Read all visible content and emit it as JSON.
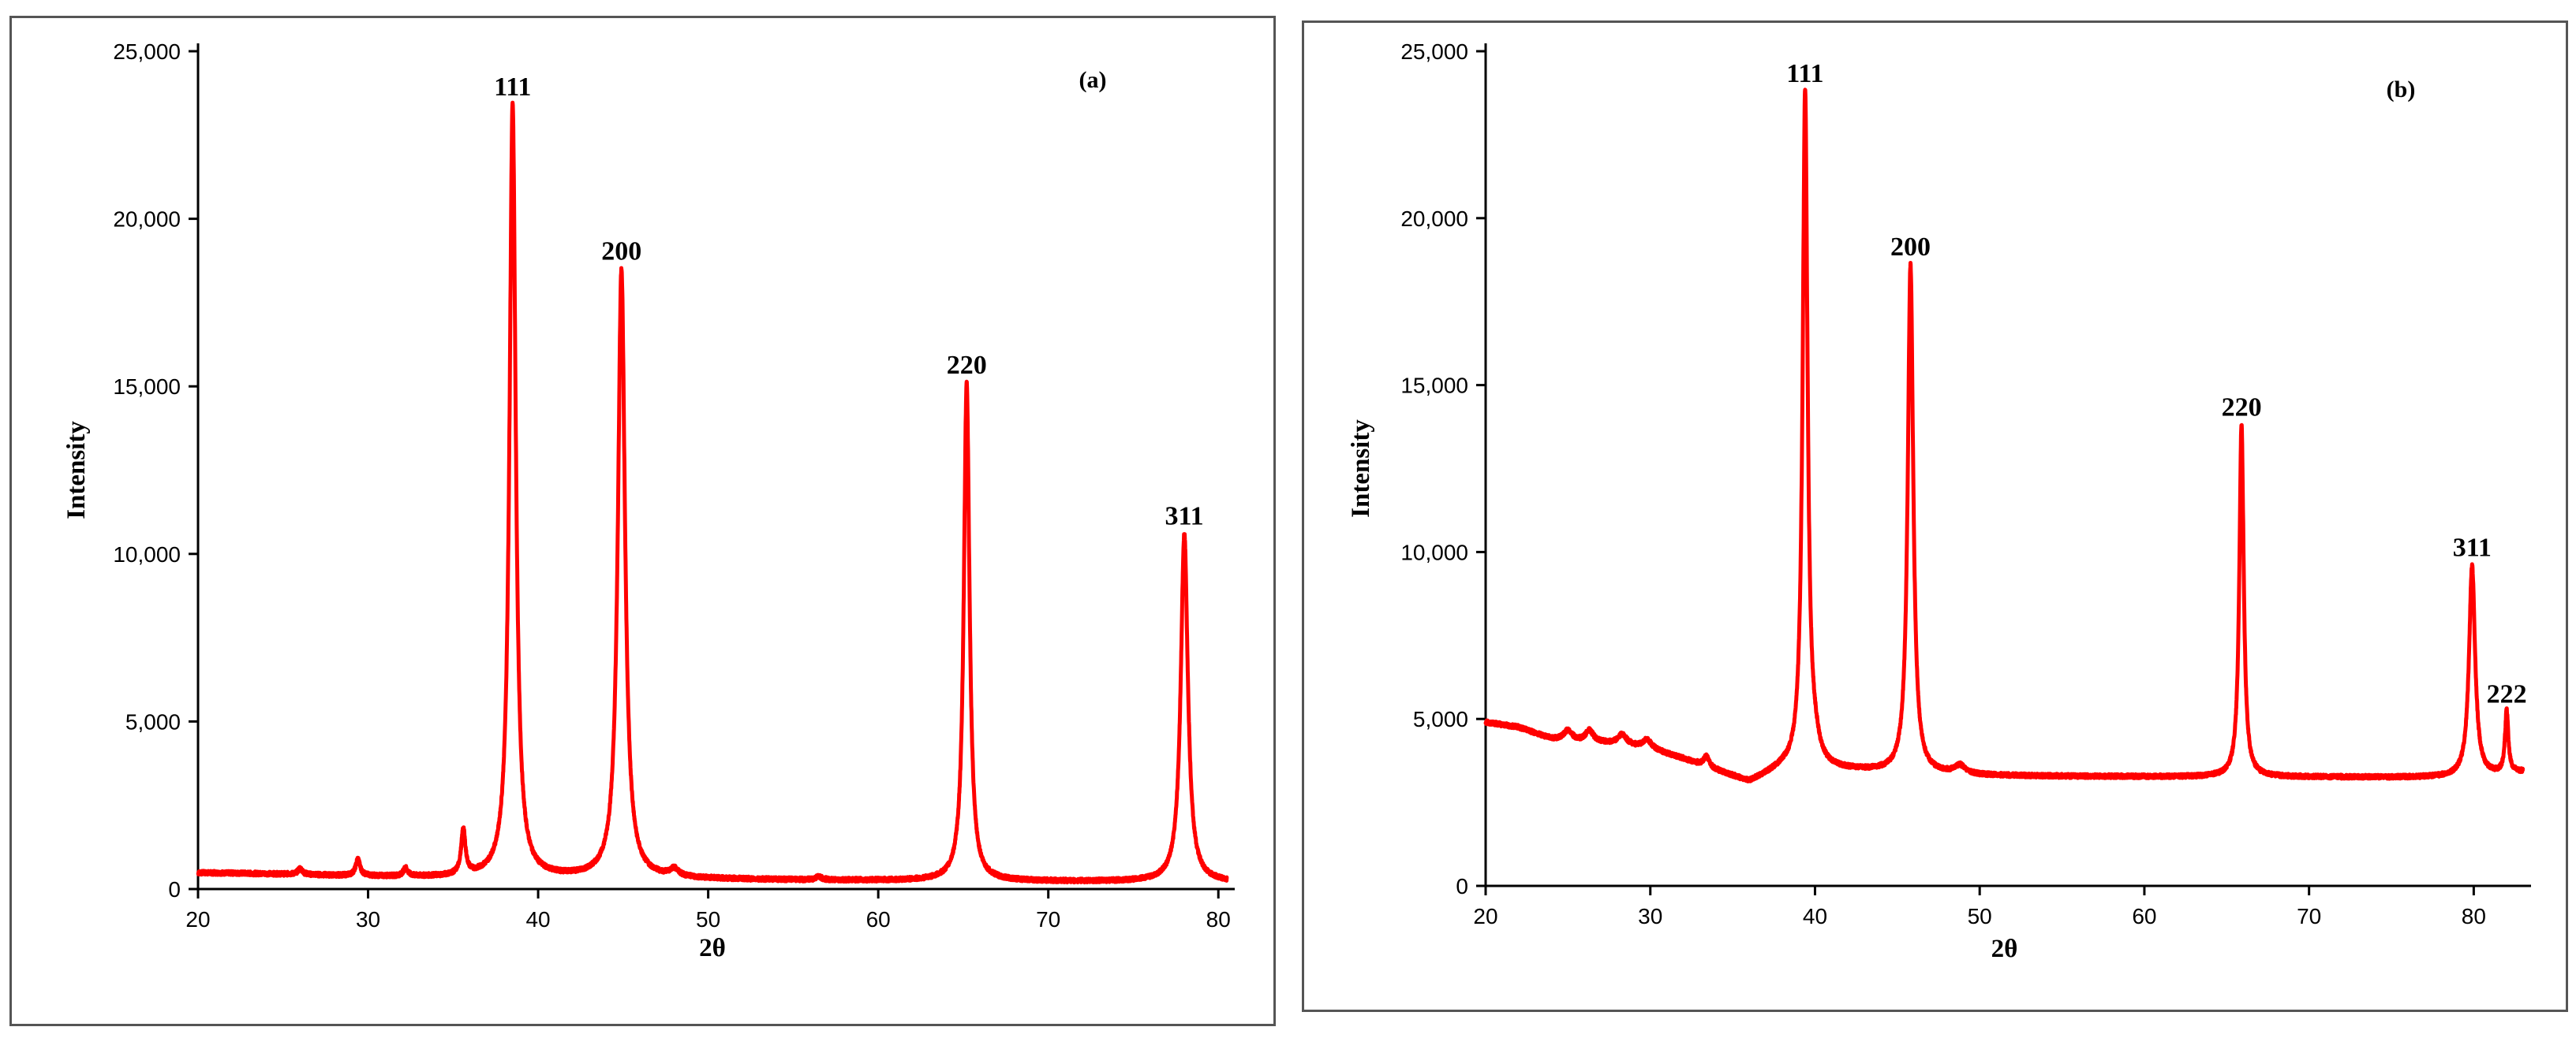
{
  "chart_data": [
    {
      "type": "line",
      "panel_label": "(a)",
      "xlabel": "2θ",
      "ylabel": "Intensity",
      "xlim": [
        20,
        80.5
      ],
      "ylim": [
        0,
        25000
      ],
      "xticks": [
        20,
        30,
        40,
        50,
        60,
        70,
        80
      ],
      "yticks": [
        0,
        5000,
        10000,
        15000,
        20000,
        25000
      ],
      "ytick_labels": [
        "0",
        "5,000",
        "10,000",
        "15,000",
        "20,000",
        "25,000"
      ],
      "grid": false,
      "legend": "none",
      "color": "#ff0000",
      "baseline": [
        [
          20,
          480
        ],
        [
          22,
          470
        ],
        [
          24,
          450
        ],
        [
          26,
          430
        ],
        [
          28,
          400
        ],
        [
          30,
          380
        ],
        [
          32,
          360
        ],
        [
          34,
          350
        ],
        [
          36,
          340
        ],
        [
          40,
          330
        ],
        [
          44,
          320
        ],
        [
          48,
          300
        ],
        [
          52,
          280
        ],
        [
          56,
          260
        ],
        [
          60,
          250
        ],
        [
          64,
          240
        ],
        [
          68,
          230
        ],
        [
          72,
          220
        ],
        [
          76,
          220
        ],
        [
          80.5,
          200
        ]
      ],
      "peaks": [
        {
          "label": "111",
          "x": 38.5,
          "y": 23400,
          "width": 0.22
        },
        {
          "label": "200",
          "x": 44.9,
          "y": 18500,
          "width": 0.25
        },
        {
          "label": "220",
          "x": 65.2,
          "y": 15100,
          "width": 0.2
        },
        {
          "label": "311",
          "x": 78.0,
          "y": 10600,
          "width": 0.25
        }
      ],
      "minor_peaks": [
        {
          "x": 26.0,
          "y": 180,
          "width": 0.15
        },
        {
          "x": 29.4,
          "y": 500,
          "width": 0.15
        },
        {
          "x": 32.2,
          "y": 250,
          "width": 0.15
        },
        {
          "x": 35.6,
          "y": 1350,
          "width": 0.15
        },
        {
          "x": 48.0,
          "y": 220,
          "width": 0.3
        },
        {
          "x": 56.5,
          "y": 100,
          "width": 0.2
        }
      ]
    },
    {
      "type": "line",
      "panel_label": "(b)",
      "xlabel": "2θ",
      "ylabel": "Intensity",
      "xlim": [
        20,
        83
      ],
      "ylim": [
        0,
        25000
      ],
      "xticks": [
        20,
        30,
        40,
        50,
        60,
        70,
        80
      ],
      "yticks": [
        0,
        5000,
        10000,
        15000,
        20000,
        25000
      ],
      "ytick_labels": [
        "0",
        "5,000",
        "10,000",
        "15,000",
        "20,000",
        "25,000"
      ],
      "grid": false,
      "legend": "none",
      "color": "#ff0000",
      "baseline": [
        [
          20,
          4900
        ],
        [
          22,
          4750
        ],
        [
          24,
          4400
        ],
        [
          26,
          4300
        ],
        [
          28,
          4250
        ],
        [
          30,
          4100
        ],
        [
          32,
          3800
        ],
        [
          34,
          3450
        ],
        [
          36,
          3100
        ],
        [
          38,
          3500
        ],
        [
          40,
          3500
        ],
        [
          42,
          3450
        ],
        [
          44,
          3400
        ],
        [
          46,
          3350
        ],
        [
          50,
          3300
        ],
        [
          55,
          3280
        ],
        [
          60,
          3270
        ],
        [
          65,
          3260
        ],
        [
          70,
          3260
        ],
        [
          75,
          3250
        ],
        [
          80,
          3250
        ],
        [
          83,
          3400
        ]
      ],
      "peaks": [
        {
          "label": "111",
          "x": 39.4,
          "y": 23800,
          "width": 0.18
        },
        {
          "label": "200",
          "x": 45.8,
          "y": 18600,
          "width": 0.2
        },
        {
          "label": "220",
          "x": 65.9,
          "y": 13800,
          "width": 0.16
        },
        {
          "label": "311",
          "x": 79.9,
          "y": 9600,
          "width": 0.22
        },
        {
          "label": "222",
          "x": 82.0,
          "y": 5200,
          "width": 0.12
        }
      ],
      "minor_peaks": [
        {
          "x": 25.0,
          "y": 300,
          "width": 0.3
        },
        {
          "x": 26.3,
          "y": 350,
          "width": 0.3
        },
        {
          "x": 28.3,
          "y": 300,
          "width": 0.3
        },
        {
          "x": 29.8,
          "y": 250,
          "width": 0.3
        },
        {
          "x": 33.4,
          "y": 300,
          "width": 0.2
        },
        {
          "x": 40.0,
          "y": 400,
          "width": 0.3
        },
        {
          "x": 48.8,
          "y": 250,
          "width": 0.4
        }
      ]
    }
  ]
}
